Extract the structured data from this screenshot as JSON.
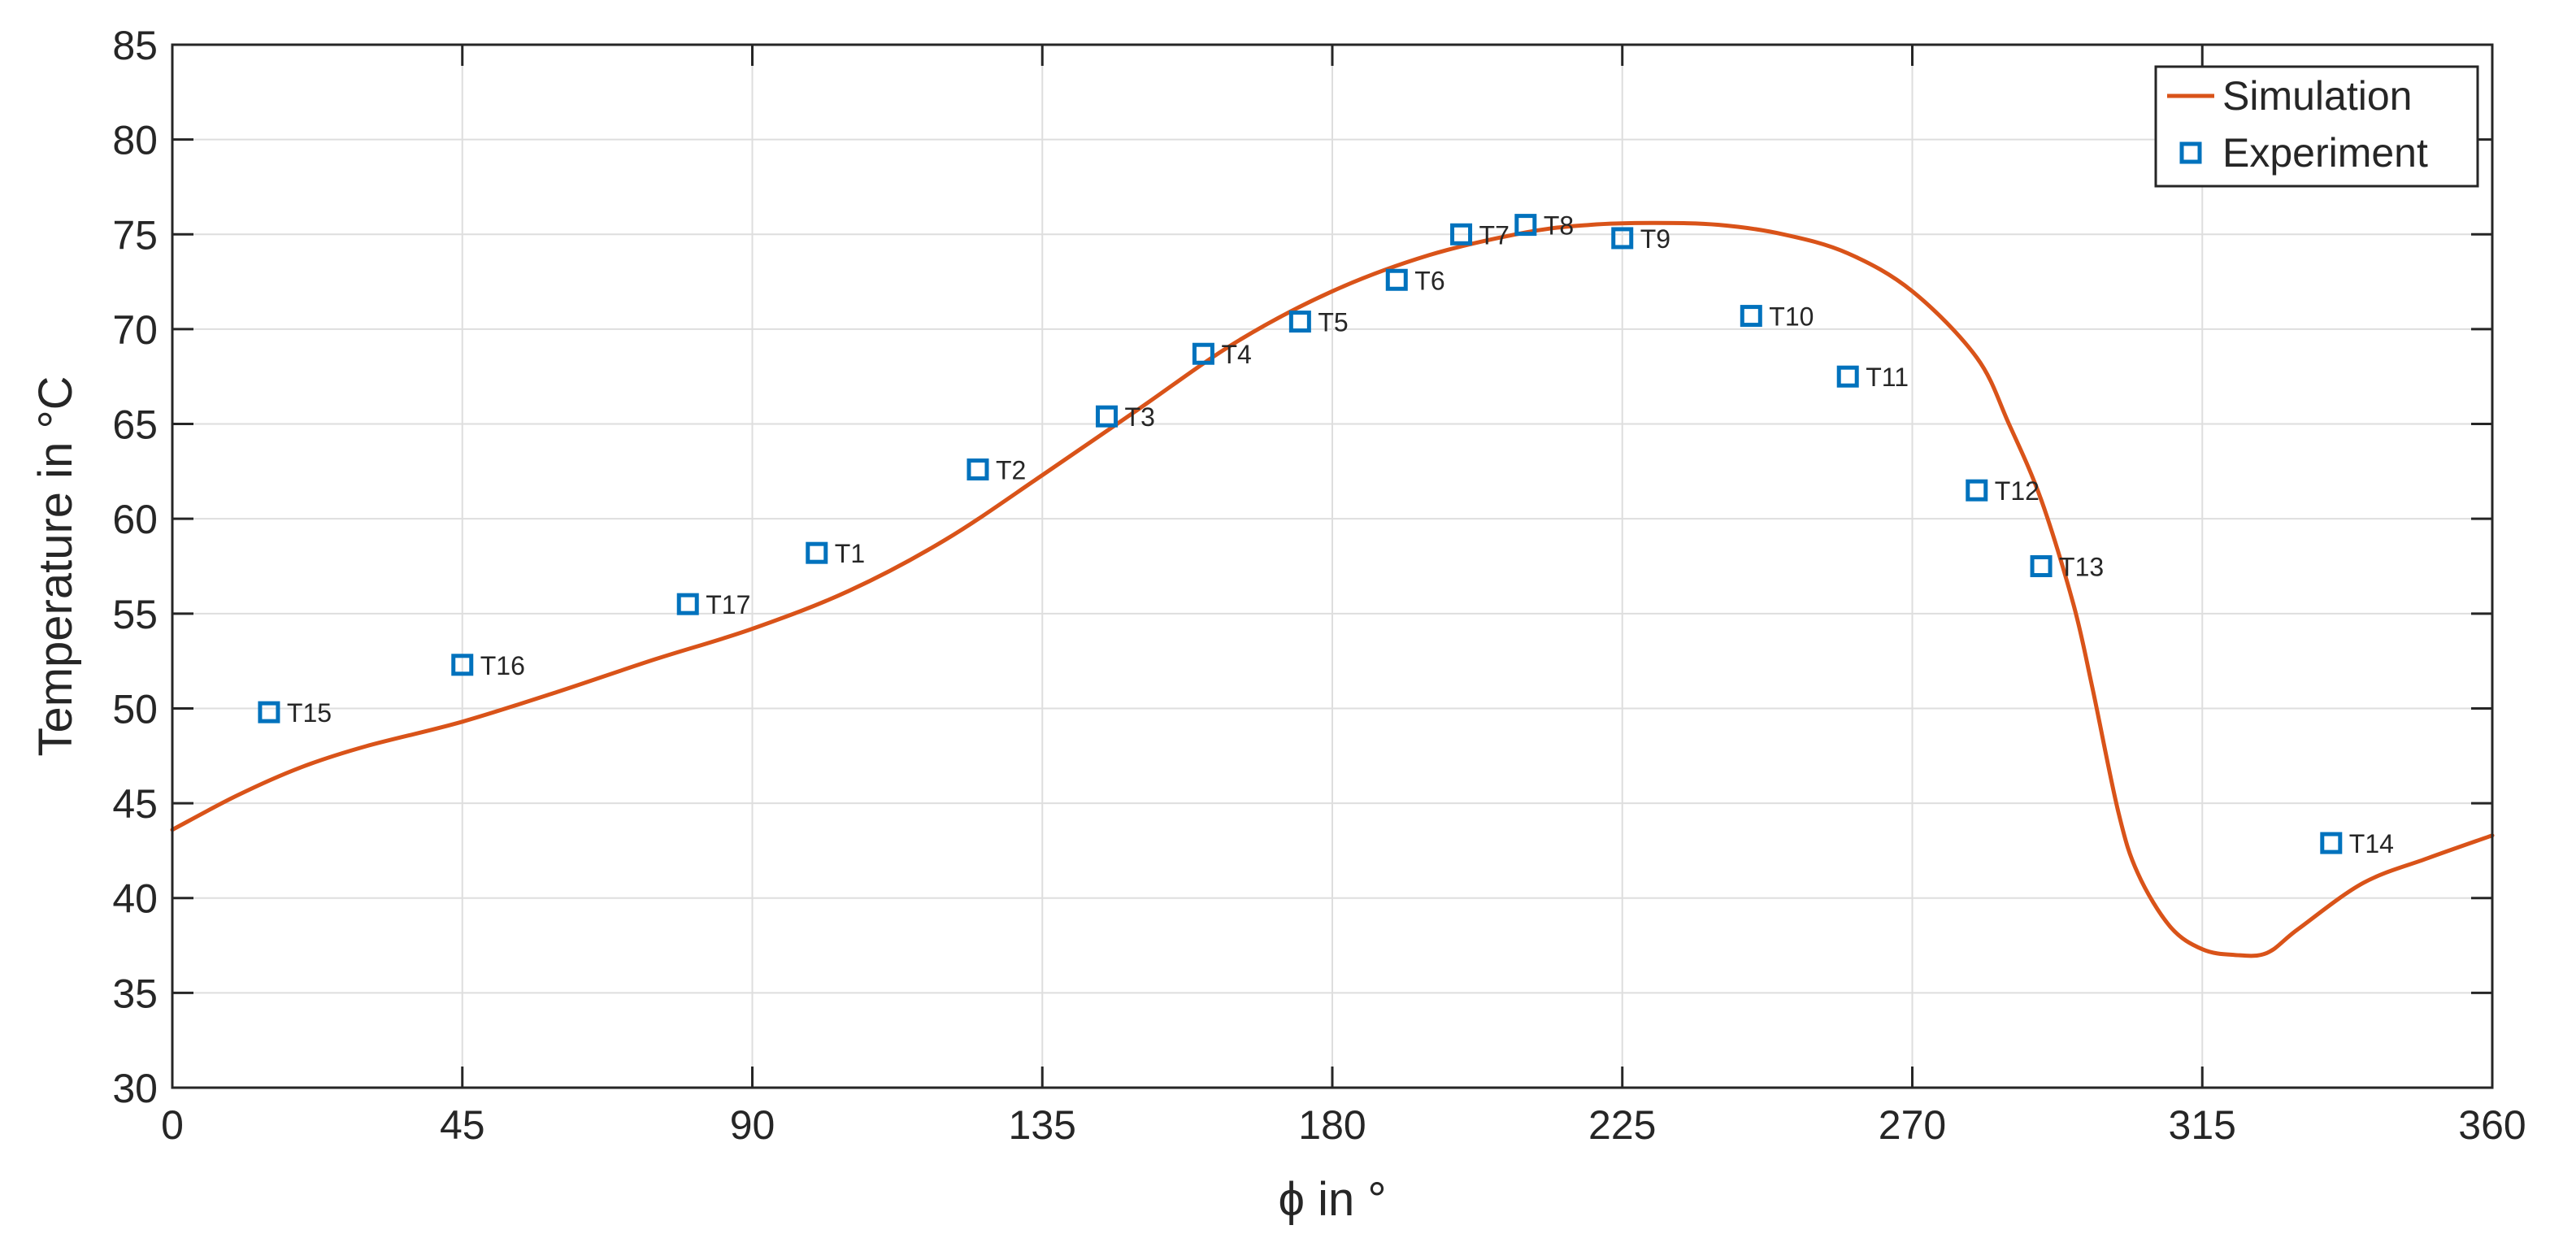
{
  "chart_data": {
    "type": "line",
    "xlabel": "ϕ in °",
    "ylabel": "Temperature in °C",
    "xlim": [
      0,
      360
    ],
    "ylim": [
      30,
      85
    ],
    "xticks": [
      0,
      45,
      90,
      135,
      180,
      225,
      270,
      315,
      360
    ],
    "yticks": [
      30,
      35,
      40,
      45,
      50,
      55,
      60,
      65,
      70,
      75,
      80,
      85
    ],
    "grid": true,
    "legend_position": "top-right",
    "series": [
      {
        "name": "Simulation",
        "kind": "line",
        "color": "#D95319",
        "x": [
          0,
          10,
          20,
          30,
          45,
          60,
          75,
          90,
          105,
          120,
          135,
          150,
          165,
          180,
          195,
          210,
          220,
          230,
          240,
          250,
          260,
          270,
          280,
          285,
          290,
          295,
          298,
          302,
          305,
          310,
          315,
          320,
          325,
          330,
          340,
          350,
          360
        ],
        "y": [
          43.6,
          45.4,
          46.9,
          48.0,
          49.3,
          50.9,
          52.6,
          54.2,
          56.2,
          58.9,
          62.3,
          65.8,
          69.3,
          72.0,
          73.9,
          75.1,
          75.5,
          75.6,
          75.5,
          75.0,
          74.0,
          72.0,
          68.5,
          65.0,
          61.0,
          55.5,
          51.0,
          44.5,
          41.3,
          38.5,
          37.3,
          37.0,
          37.1,
          38.4,
          40.8,
          42.1,
          43.3
        ]
      },
      {
        "name": "Experiment",
        "kind": "scatter",
        "marker": "square",
        "color": "#0072BD",
        "points": [
          {
            "label": "T15",
            "x": 15,
            "y": 49.8
          },
          {
            "label": "T16",
            "x": 45,
            "y": 52.3
          },
          {
            "label": "T17",
            "x": 80,
            "y": 55.5
          },
          {
            "label": "T1",
            "x": 100,
            "y": 58.2
          },
          {
            "label": "T2",
            "x": 125,
            "y": 62.6
          },
          {
            "label": "T3",
            "x": 145,
            "y": 65.4
          },
          {
            "label": "T4",
            "x": 160,
            "y": 68.7
          },
          {
            "label": "T5",
            "x": 175,
            "y": 70.4
          },
          {
            "label": "T6",
            "x": 190,
            "y": 72.6
          },
          {
            "label": "T7",
            "x": 200,
            "y": 75.0
          },
          {
            "label": "T8",
            "x": 210,
            "y": 75.5
          },
          {
            "label": "T9",
            "x": 225,
            "y": 74.8
          },
          {
            "label": "T10",
            "x": 245,
            "y": 70.7
          },
          {
            "label": "T11",
            "x": 260,
            "y": 67.5
          },
          {
            "label": "T12",
            "x": 280,
            "y": 61.5
          },
          {
            "label": "T13",
            "x": 290,
            "y": 57.5
          },
          {
            "label": "T14",
            "x": 335,
            "y": 42.9
          }
        ]
      }
    ]
  }
}
